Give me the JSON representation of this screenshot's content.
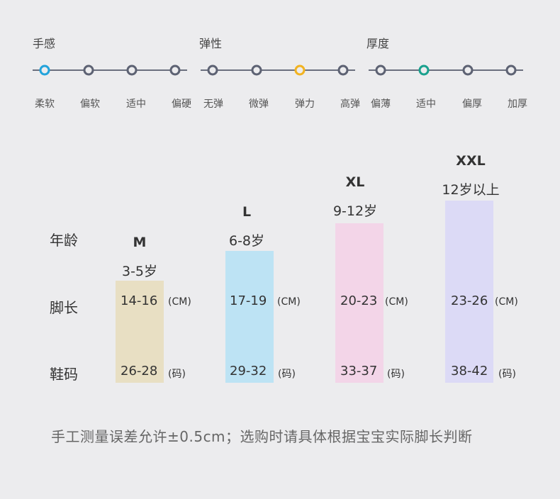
{
  "scales": [
    {
      "title": "手感",
      "labels": [
        "柔软",
        "偏软",
        "适中",
        "偏硬"
      ],
      "selected_index": 0,
      "highlight_color": "#22a3db"
    },
    {
      "title": "弹性",
      "labels": [
        "无弹",
        "微弹",
        "弹力",
        "高弹"
      ],
      "selected_index": 2,
      "highlight_color": "#f2b321"
    },
    {
      "title": "厚度",
      "labels": [
        "偏薄",
        "适中",
        "偏厚",
        "加厚"
      ],
      "selected_index": 1,
      "highlight_color": "#1aa18e"
    }
  ],
  "dot_color": "#5d6273",
  "row_labels": {
    "age": "年龄",
    "foot_length": "脚长",
    "shoe_size": "鞋码"
  },
  "sizes": [
    {
      "name": "M",
      "age": "3-5岁",
      "foot": "14-16",
      "foot_unit": "(CM)",
      "shoe": "26-28",
      "shoe_unit": "(码)",
      "color": "#e8dfc3"
    },
    {
      "name": "L",
      "age": "6-8岁",
      "foot": "17-19",
      "foot_unit": "(CM)",
      "shoe": "29-32",
      "shoe_unit": "(码)",
      "color": "#bde3f4"
    },
    {
      "name": "XL",
      "age": "9-12岁",
      "foot": "20-23",
      "foot_unit": "(CM)",
      "shoe": "33-37",
      "shoe_unit": "(码)",
      "color": "#f3d5e8"
    },
    {
      "name": "XXL",
      "age": "12岁以上",
      "foot": "23-26",
      "foot_unit": "(CM)",
      "shoe": "38-42",
      "shoe_unit": "(码)",
      "color": "#dcdaf6"
    }
  ],
  "footnote": "手工测量误差允许±0.5cm；选购时请具体根据宝宝实际脚长判断"
}
